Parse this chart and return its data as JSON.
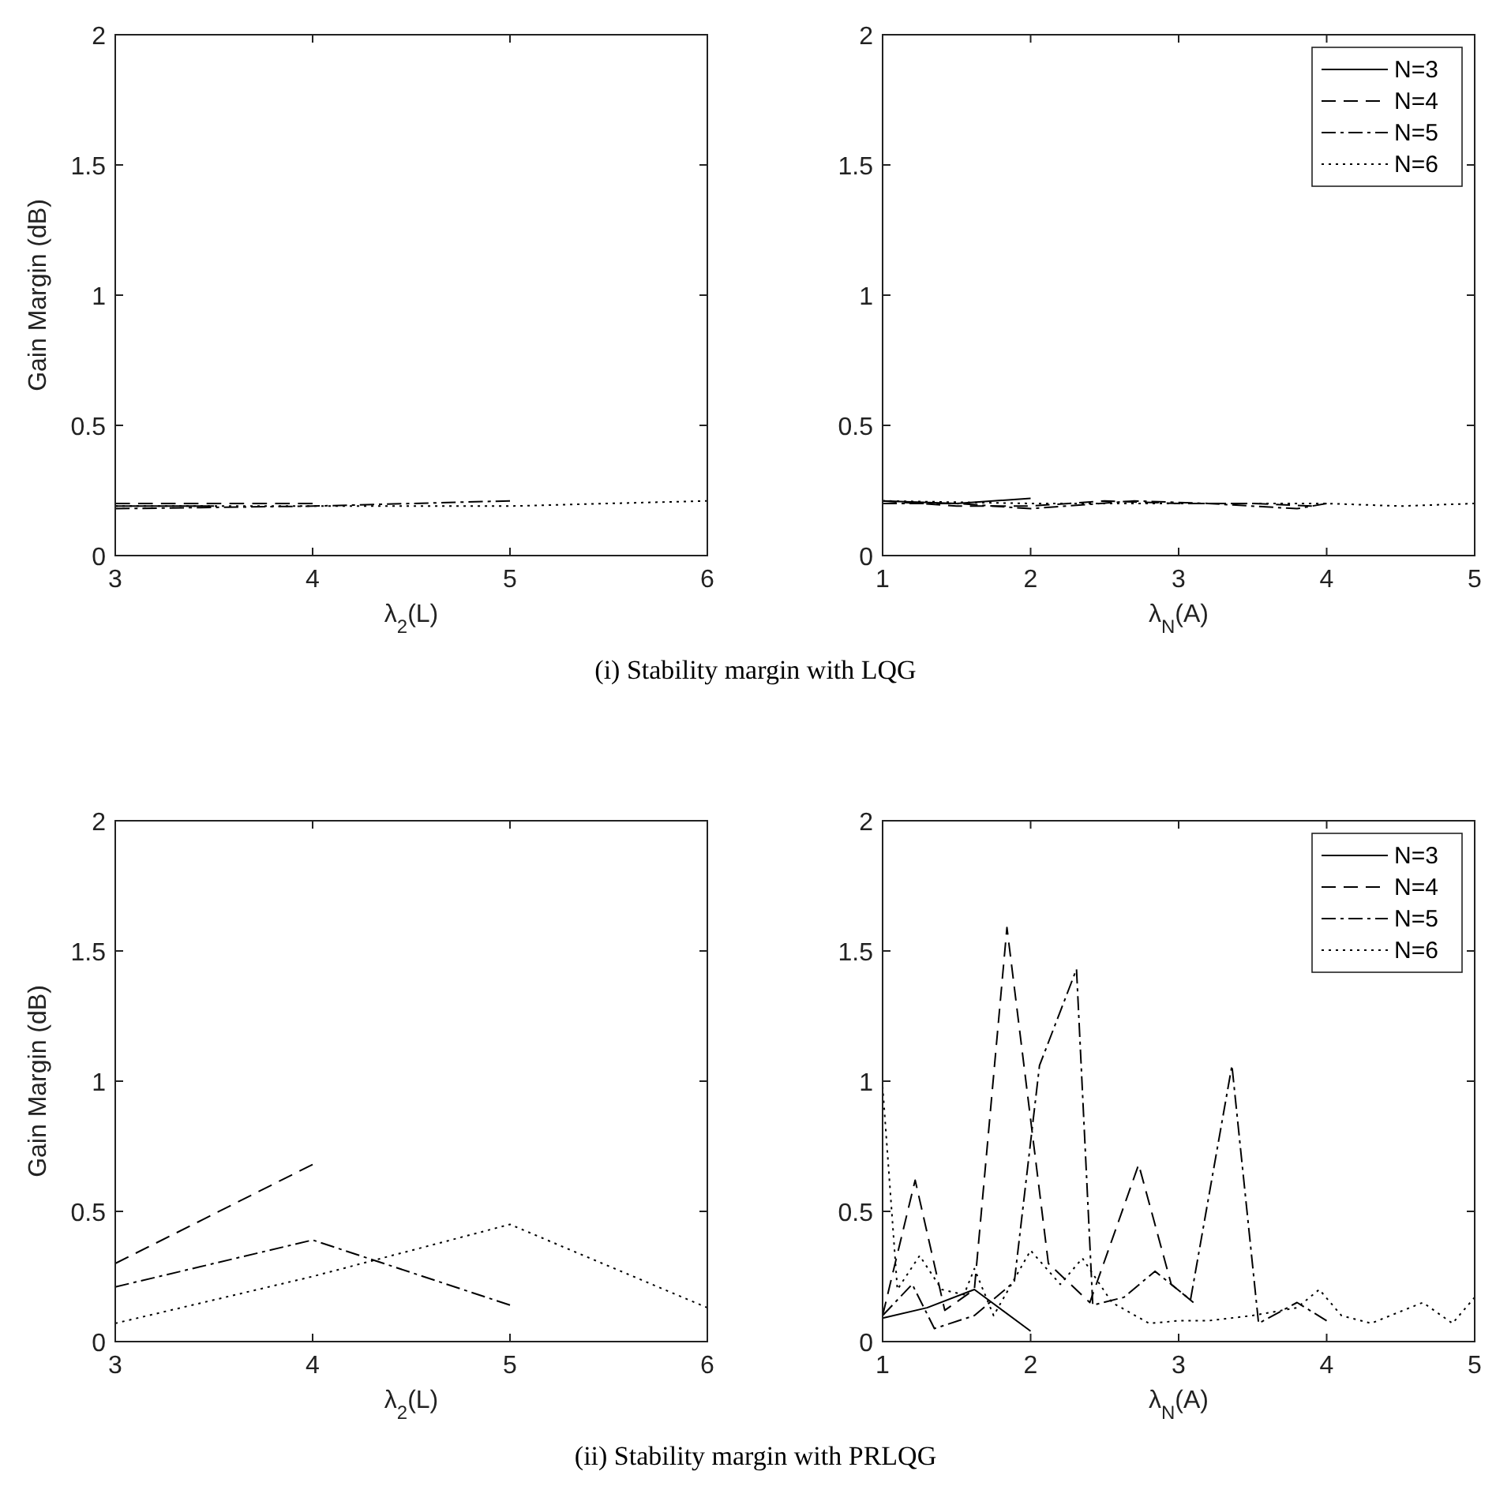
{
  "chart_data": [
    {
      "type": "line",
      "ylabel": "Gain Margin (dB)",
      "xlabel": "λ$_{2}$(L)",
      "xlim": [
        3,
        6
      ],
      "xticks": [
        3,
        4,
        5,
        6
      ],
      "ylim": [
        0,
        2
      ],
      "yticks": [
        0,
        0.5,
        1,
        1.5,
        2
      ],
      "legend": false,
      "annotations": [
        "(i)  Stability margin with LQG"
      ],
      "series": [
        {
          "color": "#000000",
          "line_style": "solid",
          "x": [
            3,
            3.5
          ],
          "values": [
            0.19,
            0.19
          ]
        },
        {
          "color": "#000000",
          "line_style": "dashed",
          "x": [
            3,
            4
          ],
          "values": [
            0.2,
            0.2
          ]
        },
        {
          "color": "#000000",
          "line_style": "dashdot",
          "x": [
            3,
            4,
            5
          ],
          "values": [
            0.18,
            0.19,
            0.21
          ]
        },
        {
          "color": "#000000",
          "line_style": "dotted",
          "x": [
            3,
            4,
            5,
            6
          ],
          "values": [
            0.19,
            0.19,
            0.19,
            0.21
          ]
        }
      ]
    },
    {
      "type": "line",
      "xlabel": "λ$_{N}$(A)",
      "xlim": [
        1,
        5
      ],
      "xticks": [
        1,
        2,
        3,
        4,
        5
      ],
      "ylim": [
        0,
        2
      ],
      "yticks": [
        0,
        0.5,
        1,
        1.5,
        2
      ],
      "legend": "top right",
      "series": [
        {
          "name": "N=3",
          "color": "#000000",
          "line_style": "solid",
          "x": [
            1,
            1.5,
            2
          ],
          "values": [
            0.21,
            0.2,
            0.22
          ]
        },
        {
          "name": "N=4",
          "color": "#000000",
          "line_style": "dashed",
          "x": [
            1,
            1.5,
            2,
            2.5,
            3,
            3.5,
            3.9
          ],
          "values": [
            0.21,
            0.19,
            0.19,
            0.21,
            0.2,
            0.2,
            0.19
          ]
        },
        {
          "name": "N=5",
          "color": "#000000",
          "line_style": "dashdot",
          "x": [
            1,
            1.5,
            2,
            2.7,
            3.2,
            3.8,
            4
          ],
          "values": [
            0.2,
            0.2,
            0.18,
            0.21,
            0.2,
            0.18,
            0.2
          ]
        },
        {
          "name": "N=6",
          "color": "#000000",
          "line_style": "dotted",
          "x": [
            1,
            2,
            3,
            4,
            4.5,
            5
          ],
          "values": [
            0.21,
            0.2,
            0.2,
            0.2,
            0.19,
            0.2
          ]
        }
      ]
    },
    {
      "type": "line",
      "ylabel": "Gain Margin (dB)",
      "xlabel": "λ$_{2}$(L)",
      "xlim": [
        3,
        6
      ],
      "xticks": [
        3,
        4,
        5,
        6
      ],
      "ylim": [
        0,
        2
      ],
      "yticks": [
        0,
        0.5,
        1,
        1.5,
        2
      ],
      "legend": false,
      "annotations": [
        "(ii)  Stability margin with PRLQG"
      ],
      "series": [
        {
          "color": "#000000",
          "line_style": "dashed",
          "x": [
            3,
            4
          ],
          "values": [
            0.3,
            0.68
          ]
        },
        {
          "color": "#000000",
          "line_style": "dashdot",
          "x": [
            3,
            4,
            5
          ],
          "values": [
            0.21,
            0.39,
            0.14
          ]
        },
        {
          "color": "#000000",
          "line_style": "dotted",
          "x": [
            3,
            4,
            5,
            6
          ],
          "values": [
            0.07,
            0.25,
            0.45,
            0.13
          ]
        }
      ]
    },
    {
      "type": "line",
      "xlabel": "λ$_{N}$(A)",
      "xlim": [
        1,
        5
      ],
      "xticks": [
        1,
        2,
        3,
        4,
        5
      ],
      "ylim": [
        0,
        2
      ],
      "yticks": [
        0,
        0.5,
        1,
        1.5,
        2
      ],
      "legend": "top right",
      "series": [
        {
          "name": "N=3",
          "color": "#000000",
          "line_style": "solid",
          "x": [
            1,
            1.3,
            1.62,
            2
          ],
          "values": [
            0.09,
            0.13,
            0.2,
            0.04
          ]
        },
        {
          "name": "N=4",
          "color": "#000000",
          "line_style": "dashed",
          "x": [
            1,
            1.22,
            1.42,
            1.62,
            1.84,
            2.12,
            2.4,
            2.73,
            2.95,
            3.1
          ],
          "values": [
            0.1,
            0.62,
            0.12,
            0.2,
            1.59,
            0.3,
            0.15,
            0.68,
            0.22,
            0.15
          ]
        },
        {
          "name": "N=5",
          "color": "#000000",
          "line_style": "dashdot",
          "x": [
            1,
            1.2,
            1.35,
            1.62,
            1.89,
            2.06,
            2.31,
            2.42,
            2.63,
            2.84,
            3.08,
            3.36,
            3.54,
            3.8,
            4
          ],
          "values": [
            0.1,
            0.22,
            0.05,
            0.1,
            0.23,
            1.06,
            1.43,
            0.14,
            0.17,
            0.27,
            0.16,
            1.06,
            0.07,
            0.15,
            0.08
          ]
        },
        {
          "name": "N=6",
          "color": "#000000",
          "line_style": "dotted",
          "x": [
            1,
            1.1,
            1.25,
            1.4,
            1.55,
            1.62,
            1.75,
            2,
            2.2,
            2.35,
            2.55,
            2.8,
            3,
            3.2,
            3.5,
            3.8,
            3.95,
            4.1,
            4.3,
            4.65,
            4.85,
            5
          ],
          "values": [
            0.98,
            0.2,
            0.33,
            0.2,
            0.18,
            0.28,
            0.1,
            0.35,
            0.22,
            0.32,
            0.15,
            0.07,
            0.08,
            0.08,
            0.1,
            0.13,
            0.2,
            0.1,
            0.07,
            0.15,
            0.07,
            0.17
          ]
        }
      ]
    }
  ]
}
